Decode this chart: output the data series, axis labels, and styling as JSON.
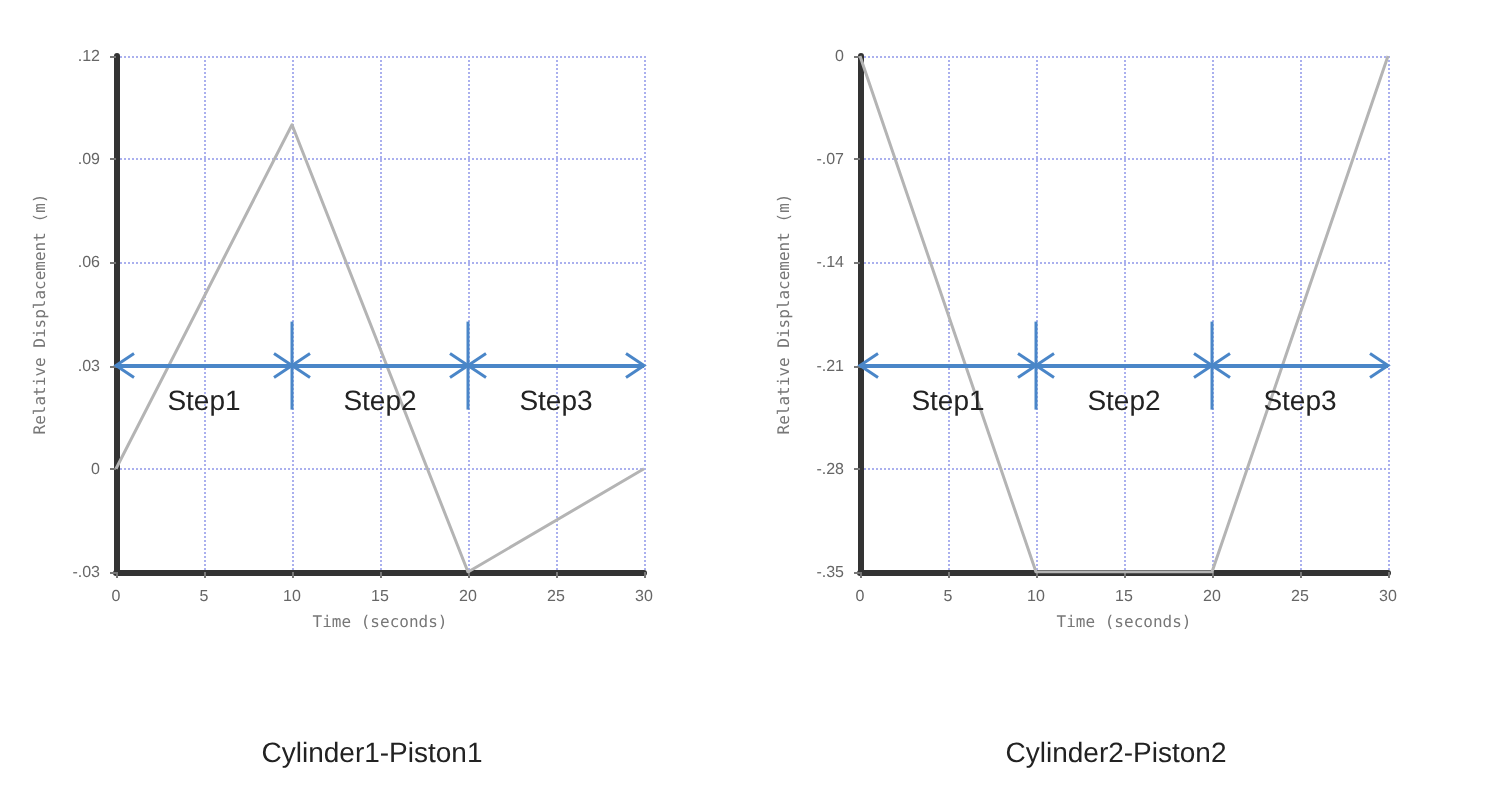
{
  "chart_data": [
    {
      "type": "line",
      "title": "Cylinder1-Piston1",
      "xlabel": "Time (seconds)",
      "ylabel": "Relative Displacement (m)",
      "x": [
        0,
        10,
        20,
        30
      ],
      "series": [
        {
          "color": "#b4b4b4",
          "values": [
            0,
            0.1,
            -0.03,
            0
          ]
        }
      ],
      "xlim": [
        0,
        30
      ],
      "xticks": [
        0,
        5,
        10,
        15,
        20,
        25,
        30
      ],
      "ylim": [
        -0.03,
        0.12
      ],
      "yticks": [
        {
          "value": -0.03,
          "label": "-.03"
        },
        0,
        {
          "value": 0.03,
          "label": ".03"
        },
        {
          "value": 0.06,
          "label": ".06"
        },
        {
          "value": 0.09,
          "label": ".09"
        },
        {
          "value": 0.12,
          "label": ".12"
        }
      ],
      "grid": true,
      "marker": "none",
      "line_style": "solid",
      "ref_lines": [
        {
          "axis": "y",
          "value": 0.03,
          "color": "#4a86c8"
        },
        {
          "axis": "x",
          "value": 10,
          "color": "#4a86c8"
        },
        {
          "axis": "x",
          "value": 20,
          "color": "#4a86c8"
        }
      ],
      "annotations": [
        "Step1",
        "Step2",
        "Step3"
      ]
    },
    {
      "type": "line",
      "title": "Cylinder2-Piston2",
      "xlabel": "Time (seconds)",
      "ylabel": "Relative Displacement (m)",
      "x": [
        0,
        10,
        20,
        30
      ],
      "series": [
        {
          "color": "#b4b4b4",
          "values": [
            0,
            -0.35,
            -0.35,
            0
          ]
        }
      ],
      "xlim": [
        0,
        30
      ],
      "xticks": [
        0,
        5,
        10,
        15,
        20,
        25,
        30
      ],
      "ylim": [
        -0.35,
        0
      ],
      "yticks": [
        {
          "value": -0.35,
          "label": "-.35"
        },
        {
          "value": -0.28,
          "label": "-.28"
        },
        {
          "value": -0.21,
          "label": "-.21"
        },
        {
          "value": -0.14,
          "label": "-.14"
        },
        {
          "value": -0.07,
          "label": "-.07"
        },
        0
      ],
      "grid": true,
      "marker": "none",
      "line_style": "solid",
      "ref_lines": [
        {
          "axis": "y",
          "value": -0.21,
          "color": "#4a86c8"
        },
        {
          "axis": "x",
          "value": 10,
          "color": "#4a86c8"
        },
        {
          "axis": "x",
          "value": 20,
          "color": "#4a86c8"
        }
      ],
      "annotations": [
        "Step1",
        "Step2",
        "Step3"
      ]
    }
  ]
}
